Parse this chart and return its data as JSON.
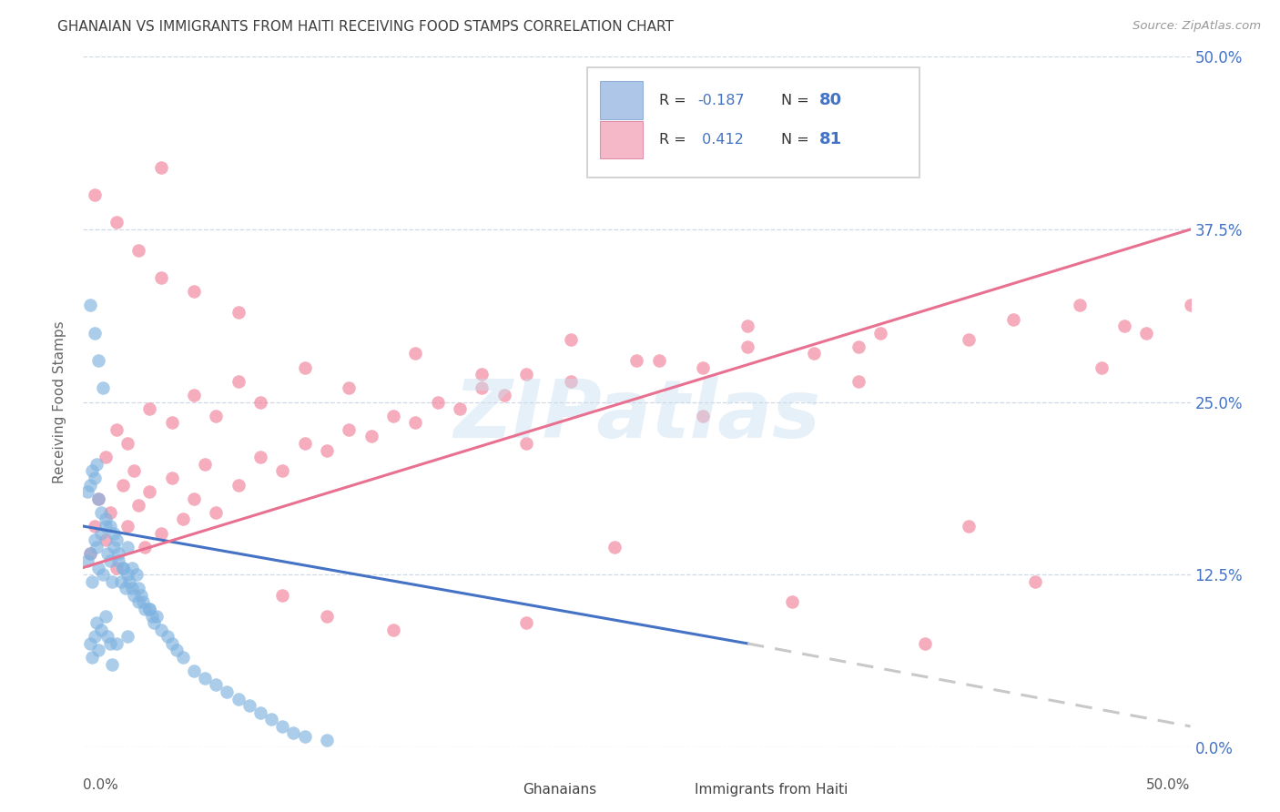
{
  "title": "GHANAIAN VS IMMIGRANTS FROM HAITI RECEIVING FOOD STAMPS CORRELATION CHART",
  "source": "Source: ZipAtlas.com",
  "ylabel": "Receiving Food Stamps",
  "ytick_values": [
    0,
    12.5,
    25.0,
    37.5,
    50.0
  ],
  "xlim": [
    0,
    50
  ],
  "ylim": [
    0,
    50
  ],
  "watermark": "ZIPatlas",
  "ghanaian_color": "#7fb3e0",
  "haiti_color": "#f08098",
  "blue_line_color": "#4472c4",
  "pink_line_color": "#e87090",
  "dashed_line_color": "#c8c8c8",
  "background_color": "#ffffff",
  "grid_color": "#d0d8e8",
  "right_axis_color": "#4472c4",
  "title_color": "#404040",
  "blue_line": {
    "x": [
      0,
      30
    ],
    "y": [
      16.0,
      7.5
    ]
  },
  "blue_dashed_line": {
    "x": [
      30,
      50
    ],
    "y": [
      7.5,
      1.5
    ]
  },
  "pink_line": {
    "x": [
      0,
      50
    ],
    "y": [
      13.0,
      37.5
    ]
  },
  "ghanaian_x": [
    0.2,
    0.3,
    0.3,
    0.4,
    0.4,
    0.5,
    0.5,
    0.6,
    0.6,
    0.7,
    0.7,
    0.8,
    0.8,
    0.9,
    1.0,
    1.0,
    1.1,
    1.1,
    1.2,
    1.2,
    1.3,
    1.3,
    1.4,
    1.5,
    1.5,
    1.6,
    1.7,
    1.8,
    1.9,
    2.0,
    2.0,
    2.1,
    2.2,
    2.3,
    2.4,
    2.5,
    2.6,
    2.7,
    2.8,
    3.0,
    3.1,
    3.2,
    3.3,
    3.5,
    3.8,
    4.0,
    4.2,
    4.5,
    5.0,
    5.5,
    6.0,
    6.5,
    7.0,
    7.5,
    8.0,
    8.5,
    9.0,
    9.5,
    10.0,
    11.0,
    0.2,
    0.3,
    0.4,
    0.5,
    0.6,
    0.7,
    0.8,
    1.0,
    1.2,
    1.4,
    1.6,
    1.8,
    2.0,
    2.2,
    2.5,
    3.0,
    0.3,
    0.5,
    0.7,
    0.9
  ],
  "ghanaian_y": [
    13.5,
    14.0,
    7.5,
    12.0,
    6.5,
    15.0,
    8.0,
    14.5,
    9.0,
    13.0,
    7.0,
    15.5,
    8.5,
    12.5,
    16.0,
    9.5,
    14.0,
    8.0,
    13.5,
    7.5,
    12.0,
    6.0,
    14.5,
    15.0,
    7.5,
    13.5,
    12.0,
    13.0,
    11.5,
    14.5,
    8.0,
    12.0,
    13.0,
    11.0,
    12.5,
    11.5,
    11.0,
    10.5,
    10.0,
    10.0,
    9.5,
    9.0,
    9.5,
    8.5,
    8.0,
    7.5,
    7.0,
    6.5,
    5.5,
    5.0,
    4.5,
    4.0,
    3.5,
    3.0,
    2.5,
    2.0,
    1.5,
    1.0,
    0.8,
    0.5,
    18.5,
    19.0,
    20.0,
    19.5,
    20.5,
    18.0,
    17.0,
    16.5,
    16.0,
    15.5,
    14.0,
    13.0,
    12.5,
    11.5,
    10.5,
    10.0,
    32.0,
    30.0,
    28.0,
    26.0
  ],
  "haiti_x": [
    0.3,
    0.5,
    0.7,
    1.0,
    1.2,
    1.5,
    1.8,
    2.0,
    2.3,
    2.5,
    2.8,
    3.0,
    3.5,
    4.0,
    4.5,
    5.0,
    5.5,
    6.0,
    7.0,
    8.0,
    9.0,
    10.0,
    11.0,
    12.0,
    13.0,
    14.0,
    15.0,
    16.0,
    17.0,
    18.0,
    19.0,
    20.0,
    22.0,
    25.0,
    28.0,
    30.0,
    33.0,
    36.0,
    40.0,
    45.0,
    1.0,
    1.5,
    2.0,
    3.0,
    4.0,
    5.0,
    6.0,
    7.0,
    8.0,
    10.0,
    12.0,
    15.0,
    18.0,
    22.0,
    26.0,
    30.0,
    35.0,
    42.0,
    48.0,
    50.0,
    0.5,
    1.5,
    2.5,
    3.5,
    5.0,
    7.0,
    9.0,
    11.0,
    14.0,
    20.0,
    24.0,
    32.0,
    38.0,
    43.0,
    47.0,
    20.0,
    28.0,
    35.0,
    40.0,
    46.0,
    3.5
  ],
  "haiti_y": [
    14.0,
    16.0,
    18.0,
    15.0,
    17.0,
    13.0,
    19.0,
    16.0,
    20.0,
    17.5,
    14.5,
    18.5,
    15.5,
    19.5,
    16.5,
    18.0,
    20.5,
    17.0,
    19.0,
    21.0,
    20.0,
    22.0,
    21.5,
    23.0,
    22.5,
    24.0,
    23.5,
    25.0,
    24.5,
    26.0,
    25.5,
    27.0,
    26.5,
    28.0,
    27.5,
    29.0,
    28.5,
    30.0,
    29.5,
    32.0,
    21.0,
    23.0,
    22.0,
    24.5,
    23.5,
    25.5,
    24.0,
    26.5,
    25.0,
    27.5,
    26.0,
    28.5,
    27.0,
    29.5,
    28.0,
    30.5,
    29.0,
    31.0,
    30.0,
    32.0,
    40.0,
    38.0,
    36.0,
    34.0,
    33.0,
    31.5,
    11.0,
    9.5,
    8.5,
    9.0,
    14.5,
    10.5,
    7.5,
    12.0,
    30.5,
    22.0,
    24.0,
    26.5,
    16.0,
    27.5,
    42.0
  ]
}
